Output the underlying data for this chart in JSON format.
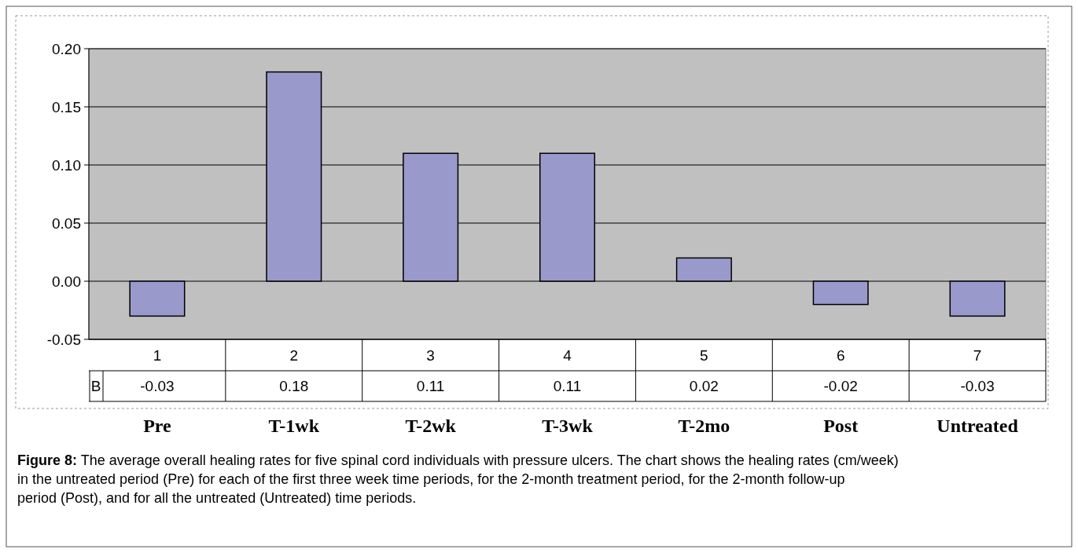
{
  "chart_data": {
    "type": "bar",
    "categories": [
      "Pre",
      "T-1wk",
      "T-2wk",
      "T-3wk",
      "T-2mo",
      "Post",
      "Untreated"
    ],
    "series": [
      {
        "name": "B",
        "color": "#9999cc",
        "values": [
          -0.03,
          0.18,
          0.11,
          0.11,
          0.02,
          -0.02,
          -0.03
        ]
      }
    ],
    "data_labels": true,
    "ylim": [
      -0.05,
      0.2
    ],
    "yticks": [
      {
        "value": -0.05,
        "label": "-0.05"
      },
      {
        "value": 0,
        "label": "0.00"
      },
      {
        "value": 0.05,
        "label": "0.05"
      },
      {
        "value": 0.1,
        "label": "0.10"
      },
      {
        "value": 0.15,
        "label": "0.15"
      },
      {
        "value": 0.2,
        "label": "0.20"
      }
    ],
    "grid": "y",
    "annotations": [
      "1",
      "2",
      "3",
      "4",
      "5",
      "6",
      "7",
      "Figure 8: The average overall healing rates for five spinal cord individuals with pressure ulcers. The chart shows the healing rates (cm/week) in the untreated period (Pre) for each of the first three week time periods, for the 2-month treatment period, for the 2-month follow-up period (Post), and for all the untreated (Untreated) time periods."
    ]
  }
}
